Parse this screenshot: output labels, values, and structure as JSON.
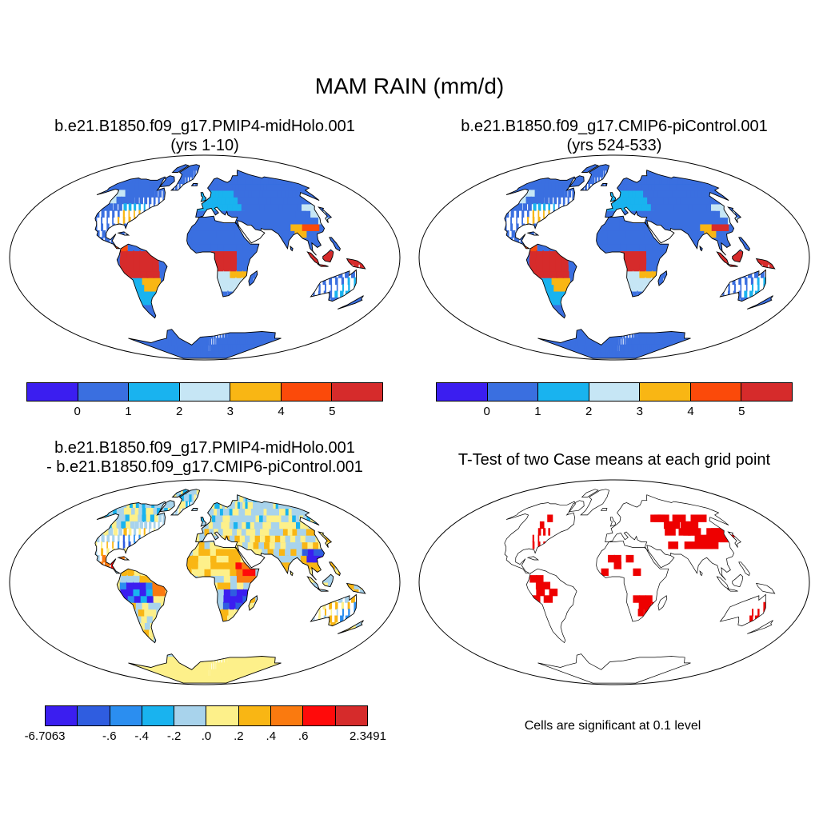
{
  "main_title": "MAM RAIN (mm/d)",
  "panels": {
    "top_left": {
      "title_line1": "b.e21.B1850.f09_g17.PMIP4-midHolo.001",
      "title_line2": "(yrs 1-10)"
    },
    "top_right": {
      "title_line1": "b.e21.B1850.f09_g17.CMIP6-piControl.001",
      "title_line2": "(yrs 524-533)"
    },
    "bottom_left": {
      "title_line1": "b.e21.B1850.f09_g17.PMIP4-midHolo.001",
      "title_line2": "- b.e21.B1850.f09_g17.CMIP6-piControl.001"
    },
    "bottom_right": {
      "title_line1": "T-Test of two Case means at each grid point",
      "note": "Cells are significant at 0.1 level",
      "significance_color": "#ee0000"
    }
  },
  "colorbar_rain": {
    "colors": [
      "#3b1ef0",
      "#3a6fe0",
      "#19b3ef",
      "#c6e6f5",
      "#f9b614",
      "#fb4a0a",
      "#d62b2b"
    ],
    "labels": [
      "0",
      "1",
      "2",
      "3",
      "4",
      "5"
    ]
  },
  "colorbar_diff": {
    "colors": [
      "#3b1ef0",
      "#2f5de0",
      "#2b8ef0",
      "#19b3ef",
      "#a8d3ec",
      "#fdf08a",
      "#f9b614",
      "#fa7a0f",
      "#ff0a0a",
      "#d62b2b"
    ],
    "labels": [
      "-6.7063",
      "-.6",
      "-.4",
      "-.2",
      ".0",
      ".2",
      ".4",
      ".6",
      "2.3491"
    ]
  },
  "map_colors": {
    "ocean": "#ffffff",
    "coast": "#000000"
  }
}
